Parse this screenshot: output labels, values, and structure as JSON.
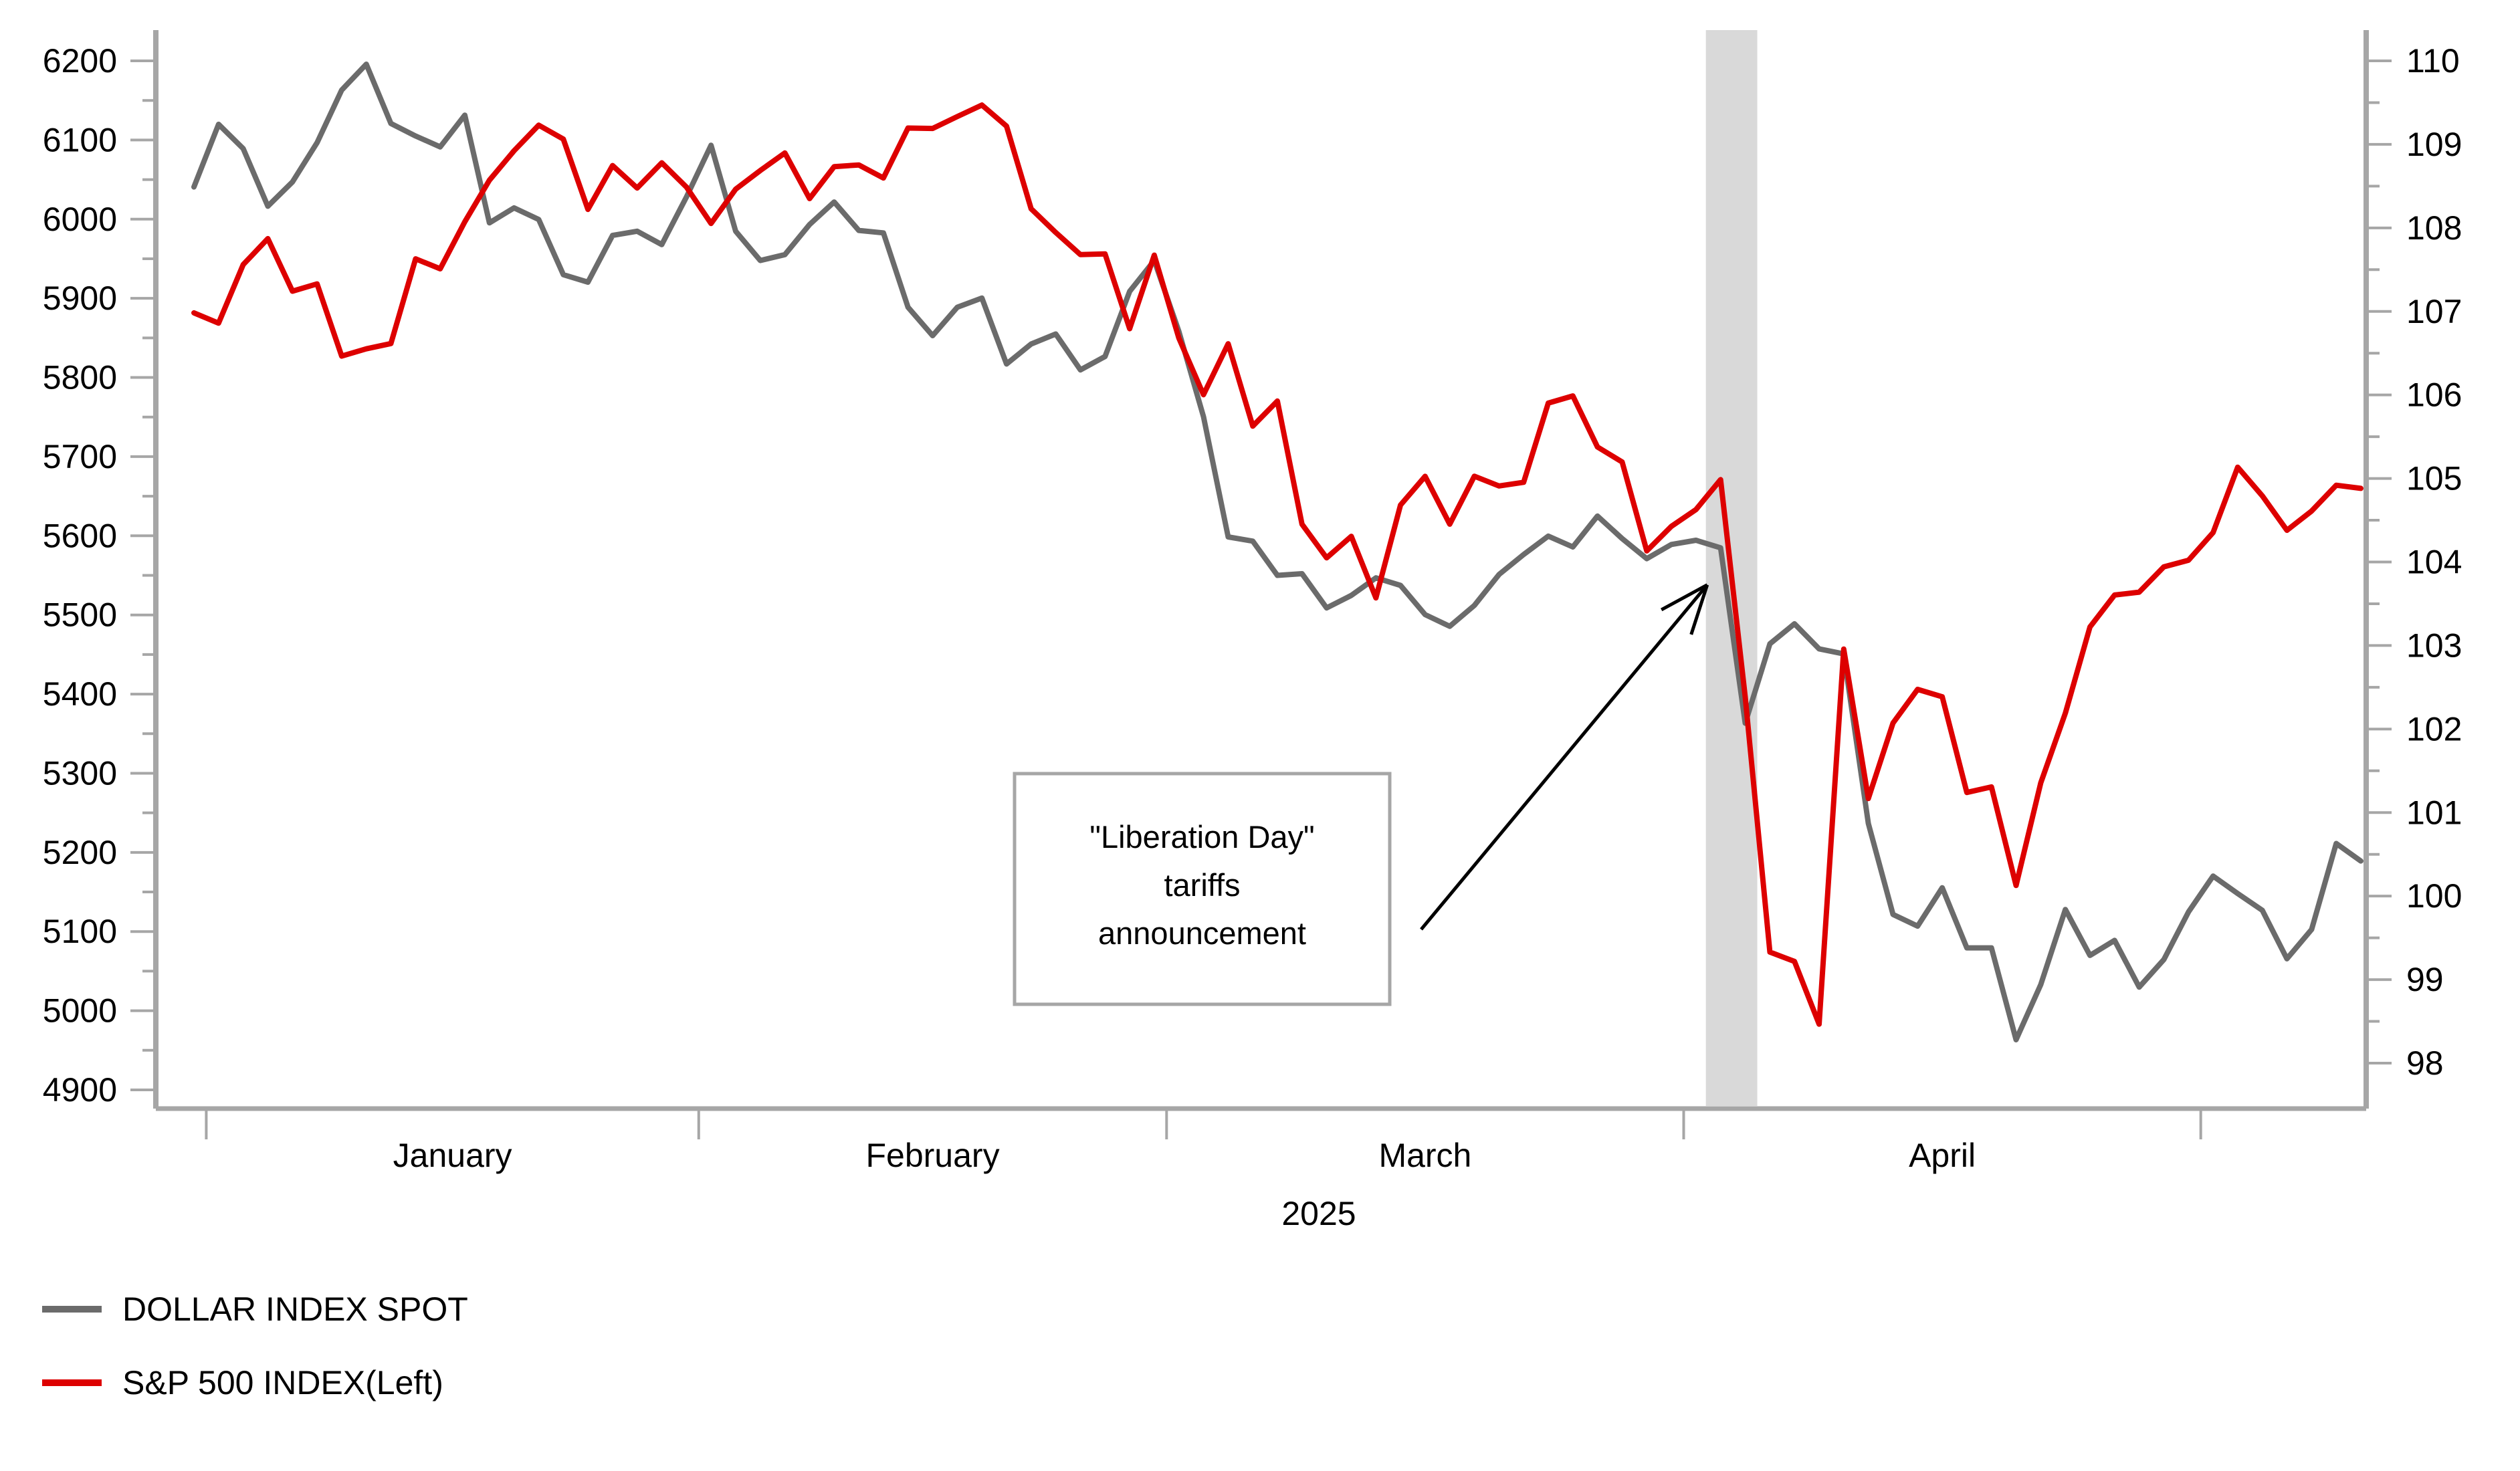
{
  "chart_data": {
    "type": "line",
    "title": "",
    "x_axis": {
      "year_label": "2025",
      "month_labels": [
        "January",
        "February",
        "March",
        "April"
      ],
      "grid": false
    },
    "left_axis": {
      "label": "",
      "min": 4900,
      "max": 6200,
      "tick_step": 100,
      "minor_tick_step": 50,
      "tick_labels": [
        "4900",
        "5000",
        "5100",
        "5200",
        "5300",
        "5400",
        "5500",
        "5600",
        "5700",
        "5800",
        "5900",
        "6000",
        "6100",
        "6200"
      ]
    },
    "right_axis": {
      "label": "",
      "min": 98,
      "max": 110,
      "tick_step": 1,
      "minor_tick_step": 0.5,
      "tick_labels": [
        "98",
        "99",
        "100",
        "101",
        "102",
        "103",
        "104",
        "105",
        "106",
        "107",
        "108",
        "109",
        "110"
      ]
    },
    "dates": [
      "12-31",
      "01-02",
      "01-03",
      "01-06",
      "01-07",
      "01-08",
      "01-10",
      "01-13",
      "01-14",
      "01-15",
      "01-16",
      "01-17",
      "01-21",
      "01-22",
      "01-23",
      "01-24",
      "01-27",
      "01-28",
      "01-29",
      "01-30",
      "01-31",
      "02-03",
      "02-04",
      "02-05",
      "02-06",
      "02-07",
      "02-10",
      "02-11",
      "02-12",
      "02-13",
      "02-14",
      "02-18",
      "02-19",
      "02-20",
      "02-21",
      "02-24",
      "02-25",
      "02-26",
      "02-27",
      "02-28",
      "03-03",
      "03-04",
      "03-05",
      "03-06",
      "03-07",
      "03-10",
      "03-11",
      "03-12",
      "03-13",
      "03-14",
      "03-17",
      "03-18",
      "03-19",
      "03-20",
      "03-21",
      "03-24",
      "03-25",
      "03-26",
      "03-27",
      "03-28",
      "03-31",
      "04-01",
      "04-02",
      "04-03",
      "04-04",
      "04-07",
      "04-08",
      "04-09",
      "04-10",
      "04-11",
      "04-14",
      "04-15",
      "04-16",
      "04-17",
      "04-21",
      "04-22",
      "04-23",
      "04-24",
      "04-25",
      "04-28",
      "04-29",
      "04-30",
      "05-01",
      "05-02",
      "05-05",
      "05-06",
      "05-07",
      "05-08",
      "05-09"
    ],
    "series": [
      {
        "name": "S&P 500 INDEX(Left)",
        "axis": "left",
        "color": "#dd0000",
        "values": [
          5881.6,
          5868.6,
          5942.5,
          5975.4,
          5909.0,
          5918.2,
          5827.0,
          5836.2,
          5842.9,
          5949.9,
          5937.3,
          5996.7,
          6049.2,
          6086.4,
          6118.7,
          6101.2,
          6012.3,
          6067.7,
          6039.3,
          6071.2,
          6040.5,
          5994.6,
          6037.9,
          6061.5,
          6083.6,
          6026.0,
          6066.4,
          6068.5,
          6052.0,
          6115.1,
          6114.6,
          6129.6,
          6144.2,
          6117.5,
          6013.1,
          5983.2,
          5955.2,
          5956.1,
          5861.6,
          5954.5,
          5849.7,
          5778.2,
          5842.6,
          5738.5,
          5770.2,
          5614.6,
          5572.1,
          5599.3,
          5521.5,
          5638.9,
          5675.1,
          5614.7,
          5675.3,
          5662.9,
          5667.6,
          5767.6,
          5776.7,
          5712.2,
          5693.3,
          5580.9,
          5611.9,
          5633.1,
          5671.0,
          5396.5,
          5074.1,
          5062.3,
          4983.0,
          5456.9,
          5268.1,
          5363.4,
          5406.0,
          5396.6,
          5275.7,
          5282.7,
          5158.2,
          5287.8,
          5375.9,
          5484.8,
          5525.2,
          5528.8,
          5560.8,
          5569.1,
          5604.1,
          5686.7,
          5650.4,
          5606.9,
          5631.3,
          5663.9,
          5659.9
        ]
      },
      {
        "name": "DOLLAR INDEX SPOT",
        "axis": "right",
        "color": "#6b6b6b",
        "values": [
          108.49,
          109.24,
          108.95,
          108.26,
          108.55,
          109.02,
          109.65,
          109.96,
          109.25,
          109.1,
          108.97,
          109.35,
          108.06,
          108.24,
          108.1,
          107.44,
          107.35,
          107.91,
          107.96,
          107.8,
          108.37,
          108.99,
          107.96,
          107.61,
          107.68,
          108.04,
          108.31,
          107.97,
          107.94,
          107.05,
          106.71,
          107.05,
          107.16,
          106.37,
          106.61,
          106.73,
          106.3,
          106.46,
          107.24,
          107.61,
          106.76,
          105.74,
          104.3,
          104.25,
          103.84,
          103.86,
          103.45,
          103.6,
          103.81,
          103.72,
          103.37,
          103.23,
          103.48,
          103.85,
          104.09,
          104.31,
          104.18,
          104.55,
          104.28,
          104.04,
          104.21,
          104.26,
          104.17,
          102.07,
          103.02,
          103.26,
          102.96,
          102.9,
          100.87,
          99.78,
          99.64,
          100.1,
          99.38,
          99.38,
          98.28,
          98.94,
          99.84,
          99.29,
          99.47,
          98.91,
          99.24,
          99.81,
          100.24,
          100.03,
          99.83,
          99.25,
          99.6,
          100.63,
          100.42
        ]
      }
    ],
    "band": {
      "from": "04-02",
      "to": "04-03",
      "color": "#d9d9d9"
    },
    "annotation": {
      "lines": [
        "\"Liberation Day\"",
        "tariffs",
        "announcement"
      ],
      "arrow_tip_date": "04-02",
      "arrow_tip_value": 5538,
      "box_border_color": "#a6a6a6"
    },
    "axis_color": "#a6a6a6",
    "legend_position": "bottom-left"
  },
  "legend": [
    {
      "label": "DOLLAR INDEX SPOT",
      "color": "#6b6b6b"
    },
    {
      "label": "S&P 500 INDEX(Left)",
      "color": "#dd0000"
    }
  ]
}
